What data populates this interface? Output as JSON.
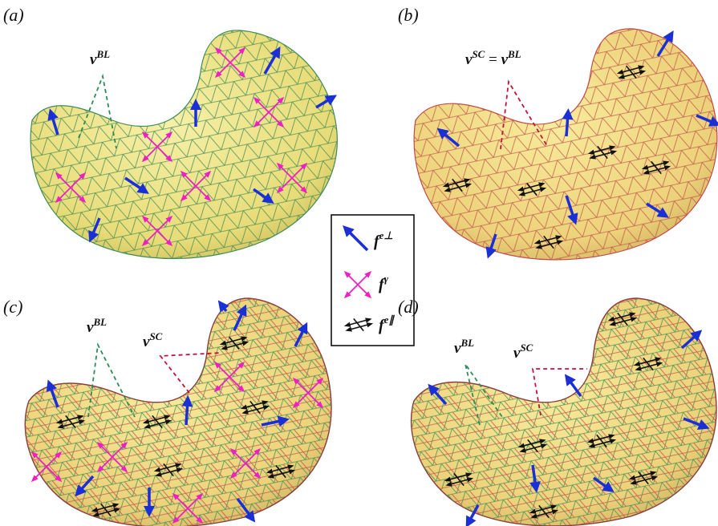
{
  "panels": [
    {
      "label": "(a)",
      "annotations": [
        {
          "sym": "v",
          "sup": "BL"
        }
      ]
    },
    {
      "label": "(b)",
      "annotations": [
        {
          "sym": "v",
          "sup": "SC",
          "eq": " = ",
          "sym2": "v",
          "sup2": "BL"
        }
      ]
    },
    {
      "label": "(c)",
      "annotations": [
        {
          "sym": "v",
          "sup": "BL"
        },
        {
          "sym": "v",
          "sup": "SC"
        }
      ]
    },
    {
      "label": "(d)",
      "annotations": [
        {
          "sym": "v",
          "sup": "BL"
        },
        {
          "sym": "v",
          "sup": "SC"
        }
      ]
    }
  ],
  "legend": {
    "items": [
      {
        "sym": "f",
        "sup": "e⊥",
        "icon": "blue-arrow-icon",
        "color": "#1a2fd6"
      },
      {
        "sym": "f",
        "sup": "γ",
        "icon": "magenta-cross-arrow-icon",
        "color": "#ee1fc4"
      },
      {
        "sym": "f",
        "sup": "e∥",
        "icon": "black-double-arrow-icon",
        "color": "#111111"
      }
    ]
  },
  "colors": {
    "surface": "#efe58a",
    "surface_shade": "#c9bd5a",
    "mesh_bulk": "#3f8a55",
    "mesh_sc": "#c04a4a",
    "blue_arrow": "#1a2fd6",
    "magenta": "#ee1fc4",
    "dashed_bl": "#2e8b57",
    "dashed_sc": "#c0143c"
  }
}
